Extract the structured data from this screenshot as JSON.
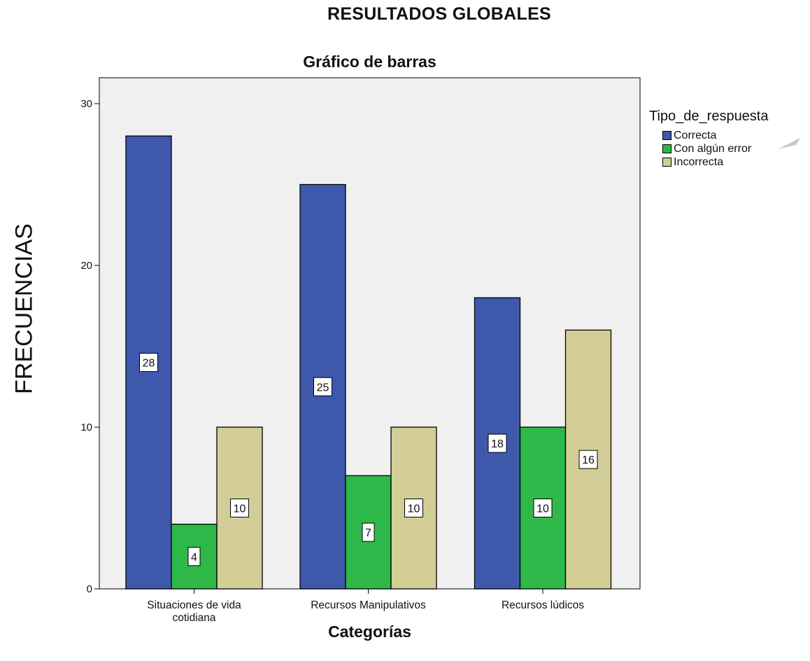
{
  "page_title": "RESULTADOS GLOBALES",
  "chart_data": {
    "type": "bar",
    "title": "Gráfico de barras",
    "xlabel": "Categorías",
    "ylabel": "FRECUENCIAS",
    "ylim": [
      0,
      30
    ],
    "yticks": [
      0,
      10,
      20,
      30
    ],
    "categories": [
      [
        "Situaciones de vida",
        "cotidiana"
      ],
      [
        "Recursos Manipulativos"
      ],
      [
        "Recursos lúdicos"
      ]
    ],
    "legend_title": "Tipo_de_respuesta",
    "legend_position": "right",
    "grid": false,
    "plot_background": "#f0f0f0",
    "series": [
      {
        "name": "Correcta",
        "color": "#3e58ac",
        "values": [
          28,
          25,
          18
        ]
      },
      {
        "name": "Con algún error",
        "color": "#2eb84a",
        "values": [
          4,
          7,
          10
        ]
      },
      {
        "name": "Incorrecta",
        "color": "#d3ce97",
        "values": [
          10,
          10,
          16
        ]
      }
    ]
  }
}
